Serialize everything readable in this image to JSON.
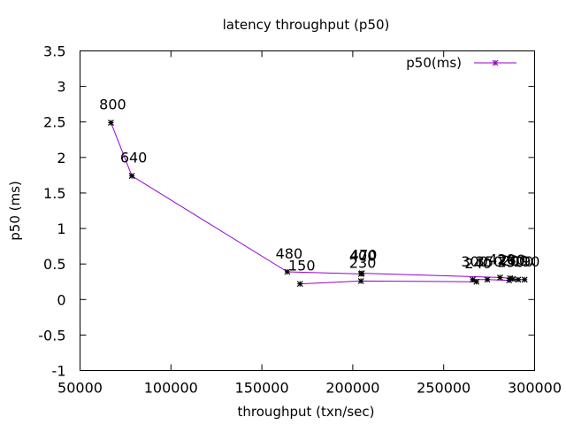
{
  "chart_data": {
    "type": "line",
    "title": "latency throughput (p50)",
    "xlabel": "throughput (txn/sec)",
    "ylabel": "p50 (ms)",
    "xlim": [
      50000,
      300000
    ],
    "ylim": [
      -1,
      3.5
    ],
    "x_ticks": [
      "50000",
      "100000",
      "150000",
      "200000",
      "250000",
      "300000"
    ],
    "y_ticks": [
      "-1",
      "-0.5",
      "0",
      "0.5",
      "1",
      "1.5",
      "2",
      "2.5",
      "3",
      "3.5"
    ],
    "legend": {
      "position": "top-right",
      "entries": [
        "p50(ms)"
      ]
    },
    "series": [
      {
        "name": "p50(ms)",
        "color": "#9400d3",
        "marker": "star",
        "points": [
          {
            "x": 67000,
            "y": 2.49,
            "label": "800"
          },
          {
            "x": 78500,
            "y": 1.74,
            "label": "640"
          },
          {
            "x": 164000,
            "y": 0.39,
            "label": "480"
          },
          {
            "x": 204500,
            "y": 0.36,
            "label": "400"
          },
          {
            "x": 205000,
            "y": 0.37,
            "label": "470"
          },
          {
            "x": 281000,
            "y": 0.31,
            "label": "420"
          },
          {
            "x": 286500,
            "y": 0.3,
            "label": "280"
          },
          {
            "x": 288000,
            "y": 0.29,
            "label": "200"
          },
          {
            "x": 291000,
            "y": 0.28,
            "label": "300"
          },
          {
            "x": 294500,
            "y": 0.28,
            "label": "190"
          },
          {
            "x": 286000,
            "y": 0.27,
            "label": "250"
          },
          {
            "x": 274000,
            "y": 0.28,
            "label": "350"
          },
          {
            "x": 266000,
            "y": 0.28,
            "label": "300"
          },
          {
            "x": 268000,
            "y": 0.25,
            "label": "240"
          },
          {
            "x": 204500,
            "y": 0.26,
            "label": "230"
          },
          {
            "x": 171000,
            "y": 0.22,
            "label": "150"
          }
        ]
      }
    ],
    "grid": false
  }
}
